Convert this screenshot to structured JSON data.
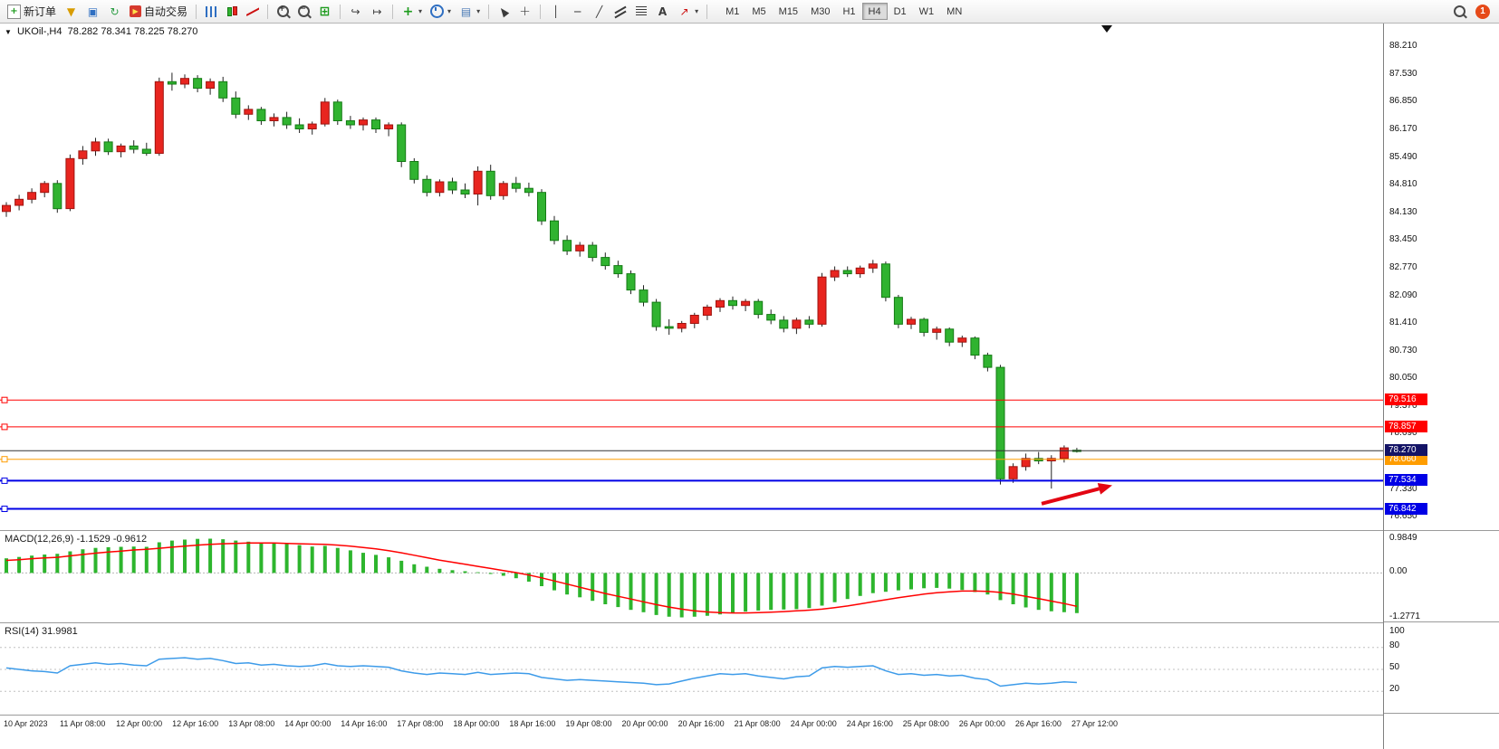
{
  "toolbar": {
    "new_order_label": "新订单",
    "autotrading_label": "自动交易",
    "periods": [
      "M1",
      "M5",
      "M15",
      "M30",
      "H1",
      "H4",
      "D1",
      "W1",
      "MN"
    ],
    "active_period": "H4",
    "notification_count": "1"
  },
  "icons": {
    "new_order_plus": "+",
    "funnel": "▼",
    "monitor": "▣",
    "refresh": "↻",
    "autotrading_play": "▶",
    "grid": "⊞",
    "auto_scroll": "↪",
    "chart_shift": "↦",
    "indicators_plus": "+",
    "templates": "▤",
    "crosshair": "+",
    "vertical_line": "│",
    "horizontal_line": "─",
    "trendline": "╱",
    "text_tool": "A",
    "arrows_tool": "↗",
    "caret": "▾",
    "collapse": "▼"
  },
  "chart_data": {
    "type": "candlestick",
    "title": "UKOil-,H4",
    "symbol": "UKOil-",
    "timeframe": "H4",
    "ohlc_text": "78.282 78.341 78.225 78.270",
    "ohlc_current": {
      "open": 78.282,
      "high": 78.341,
      "low": 78.225,
      "close": 78.27
    },
    "x_labels": [
      "10 Apr 2023",
      "11 Apr 08:00",
      "12 Apr 00:00",
      "12 Apr 16:00",
      "13 Apr 08:00",
      "14 Apr 00:00",
      "14 Apr 16:00",
      "17 Apr 08:00",
      "18 Apr 00:00",
      "18 Apr 16:00",
      "19 Apr 08:00",
      "20 Apr 00:00",
      "20 Apr 16:00",
      "21 Apr 08:00",
      "24 Apr 00:00",
      "24 Apr 16:00",
      "25 Apr 08:00",
      "26 Apr 00:00",
      "26 Apr 16:00",
      "27 Apr 12:00"
    ],
    "colors": {
      "up": "#e8251f",
      "up_border": "#9e1410",
      "down": "#30b330",
      "down_border": "#147a14",
      "wick": "#222222",
      "macd_hist": "#2db52d",
      "macd_signal": "#ff0000",
      "rsi_line": "#3d9be9"
    },
    "main": {
      "y_range": [
        76.32,
        88.77
      ],
      "y_ticks": [
        {
          "v": 88.21,
          "label": "88.210"
        },
        {
          "v": 87.53,
          "label": "87.530"
        },
        {
          "v": 86.85,
          "label": "86.850"
        },
        {
          "v": 86.17,
          "label": "86.170"
        },
        {
          "v": 85.49,
          "label": "85.490"
        },
        {
          "v": 84.81,
          "label": "84.810"
        },
        {
          "v": 84.13,
          "label": "84.130"
        },
        {
          "v": 83.45,
          "label": "83.450"
        },
        {
          "v": 82.77,
          "label": "82.770"
        },
        {
          "v": 82.09,
          "label": "82.090"
        },
        {
          "v": 81.41,
          "label": "81.410"
        },
        {
          "v": 80.73,
          "label": "80.730"
        },
        {
          "v": 80.05,
          "label": "80.050"
        },
        {
          "v": 79.37,
          "label": "79.370"
        },
        {
          "v": 78.69,
          "label": "78.690"
        },
        {
          "v": 77.33,
          "label": "77.330"
        },
        {
          "v": 76.65,
          "label": "76.650"
        }
      ],
      "hlines": [
        {
          "price": 79.516,
          "label": "79.516",
          "color": "#ff0000",
          "width": 1
        },
        {
          "price": 78.857,
          "label": "78.857",
          "color": "#ff0000",
          "width": 1
        },
        {
          "price": 78.06,
          "label": "78.060",
          "color": "#ff9d00",
          "width": 1
        },
        {
          "price": 77.534,
          "label": "77.534",
          "color": "#0000e6",
          "width": 2
        },
        {
          "price": 76.842,
          "label": "76.842",
          "color": "#0000e6",
          "width": 2
        }
      ],
      "current_price": {
        "label": "78.270",
        "price": 78.27,
        "badge_bg": "#141466",
        "line_color": "#333333"
      },
      "arrow": {
        "tail": [
          1150,
          76.97
        ],
        "head": [
          1228,
          77.42
        ],
        "color": "#e30613"
      },
      "shift_marker_x": 1222,
      "candles": [
        [
          84.15,
          84.38,
          84.02,
          84.3
        ],
        [
          84.3,
          84.56,
          84.18,
          84.45
        ],
        [
          84.45,
          84.72,
          84.35,
          84.62
        ],
        [
          84.62,
          84.9,
          84.5,
          84.84
        ],
        [
          84.84,
          84.92,
          84.12,
          84.22
        ],
        [
          84.22,
          85.55,
          84.16,
          85.45
        ],
        [
          85.45,
          85.76,
          85.3,
          85.64
        ],
        [
          85.64,
          85.96,
          85.52,
          85.86
        ],
        [
          85.86,
          85.94,
          85.54,
          85.62
        ],
        [
          85.62,
          85.82,
          85.48,
          85.76
        ],
        [
          85.76,
          85.9,
          85.58,
          85.68
        ],
        [
          85.68,
          85.84,
          85.52,
          85.58
        ],
        [
          85.58,
          87.44,
          85.52,
          87.34
        ],
        [
          87.34,
          87.56,
          87.12,
          87.28
        ],
        [
          87.28,
          87.52,
          87.18,
          87.42
        ],
        [
          87.42,
          87.5,
          87.08,
          87.18
        ],
        [
          87.18,
          87.42,
          87.02,
          87.34
        ],
        [
          87.34,
          87.46,
          86.84,
          86.94
        ],
        [
          86.94,
          87.1,
          86.44,
          86.54
        ],
        [
          86.54,
          86.76,
          86.4,
          86.66
        ],
        [
          86.66,
          86.72,
          86.28,
          86.38
        ],
        [
          86.38,
          86.56,
          86.24,
          86.46
        ],
        [
          86.46,
          86.6,
          86.18,
          86.28
        ],
        [
          86.28,
          86.44,
          86.08,
          86.18
        ],
        [
          86.18,
          86.36,
          86.04,
          86.3
        ],
        [
          86.3,
          86.94,
          86.24,
          86.84
        ],
        [
          86.84,
          86.9,
          86.28,
          86.38
        ],
        [
          86.38,
          86.5,
          86.18,
          86.28
        ],
        [
          86.28,
          86.46,
          86.14,
          86.4
        ],
        [
          86.4,
          86.46,
          86.08,
          86.18
        ],
        [
          86.18,
          86.34,
          86.0,
          86.28
        ],
        [
          86.28,
          86.34,
          85.24,
          85.38
        ],
        [
          85.38,
          85.46,
          84.84,
          84.94
        ],
        [
          84.94,
          85.04,
          84.52,
          84.62
        ],
        [
          84.62,
          84.94,
          84.52,
          84.88
        ],
        [
          84.88,
          84.98,
          84.58,
          84.68
        ],
        [
          84.68,
          84.84,
          84.48,
          84.58
        ],
        [
          84.58,
          85.26,
          84.3,
          85.14
        ],
        [
          85.14,
          85.3,
          84.44,
          84.54
        ],
        [
          84.54,
          84.9,
          84.44,
          84.84
        ],
        [
          84.84,
          85.0,
          84.62,
          84.72
        ],
        [
          84.72,
          84.86,
          84.52,
          84.62
        ],
        [
          84.62,
          84.7,
          83.82,
          83.92
        ],
        [
          83.92,
          84.04,
          83.34,
          83.44
        ],
        [
          83.44,
          83.56,
          83.08,
          83.18
        ],
        [
          83.18,
          83.4,
          83.04,
          83.32
        ],
        [
          83.32,
          83.4,
          82.92,
          83.02
        ],
        [
          83.02,
          83.14,
          82.72,
          82.82
        ],
        [
          82.82,
          82.94,
          82.52,
          82.62
        ],
        [
          82.62,
          82.7,
          82.12,
          82.22
        ],
        [
          82.22,
          82.34,
          81.82,
          81.92
        ],
        [
          81.92,
          82.0,
          81.22,
          81.32
        ],
        [
          81.32,
          81.5,
          81.12,
          81.28
        ],
        [
          81.28,
          81.46,
          81.18,
          81.4
        ],
        [
          81.4,
          81.66,
          81.28,
          81.6
        ],
        [
          81.6,
          81.86,
          81.48,
          81.8
        ],
        [
          81.8,
          82.02,
          81.68,
          81.96
        ],
        [
          81.96,
          82.06,
          81.74,
          81.84
        ],
        [
          81.84,
          82.0,
          81.7,
          81.94
        ],
        [
          81.94,
          82.0,
          81.52,
          81.62
        ],
        [
          81.62,
          81.74,
          81.38,
          81.48
        ],
        [
          81.48,
          81.58,
          81.18,
          81.28
        ],
        [
          81.28,
          81.54,
          81.14,
          81.48
        ],
        [
          81.48,
          81.58,
          81.28,
          81.38
        ],
        [
          81.38,
          82.64,
          81.32,
          82.54
        ],
        [
          82.54,
          82.8,
          82.44,
          82.7
        ],
        [
          82.7,
          82.8,
          82.54,
          82.62
        ],
        [
          82.62,
          82.82,
          82.52,
          82.76
        ],
        [
          82.76,
          82.96,
          82.64,
          82.86
        ],
        [
          82.86,
          82.92,
          81.94,
          82.04
        ],
        [
          82.04,
          82.1,
          81.28,
          81.38
        ],
        [
          81.38,
          81.56,
          81.26,
          81.5
        ],
        [
          81.5,
          81.54,
          81.08,
          81.18
        ],
        [
          81.18,
          81.32,
          81.0,
          81.26
        ],
        [
          81.26,
          81.3,
          80.84,
          80.94
        ],
        [
          80.94,
          81.1,
          80.82,
          81.04
        ],
        [
          81.04,
          81.08,
          80.52,
          80.62
        ],
        [
          80.62,
          80.68,
          80.22,
          80.32
        ],
        [
          80.32,
          80.38,
          77.44,
          77.58
        ],
        [
          77.58,
          77.96,
          77.48,
          77.88
        ],
        [
          77.88,
          78.2,
          77.78,
          78.08
        ],
        [
          78.08,
          78.24,
          77.94,
          78.02
        ],
        [
          78.02,
          78.16,
          77.34,
          78.08
        ],
        [
          78.08,
          78.4,
          77.98,
          78.34
        ],
        [
          78.282,
          78.341,
          78.225,
          78.27
        ]
      ]
    },
    "macd": {
      "label": "MACD(12,26,9)",
      "values_text": "-1.1529 -0.9612",
      "y_range": [
        -1.42,
        1.18
      ],
      "ticks": [
        {
          "v": 0.9849,
          "label": "0.9849"
        },
        {
          "v": 0,
          "label": "0.00"
        },
        {
          "v": -1.2771,
          "label": "-1.2771"
        }
      ],
      "hist": [
        0.42,
        0.46,
        0.5,
        0.53,
        0.55,
        0.62,
        0.68,
        0.72,
        0.74,
        0.75,
        0.76,
        0.75,
        0.88,
        0.93,
        0.96,
        0.98,
        0.985,
        0.97,
        0.93,
        0.9,
        0.88,
        0.86,
        0.84,
        0.8,
        0.76,
        0.78,
        0.72,
        0.65,
        0.58,
        0.52,
        0.45,
        0.35,
        0.25,
        0.18,
        0.12,
        0.08,
        0.05,
        0.02,
        -0.03,
        -0.08,
        -0.15,
        -0.25,
        -0.38,
        -0.5,
        -0.62,
        -0.7,
        -0.8,
        -0.9,
        -0.98,
        -1.06,
        -1.13,
        -1.21,
        -1.26,
        -1.277,
        -1.26,
        -1.23,
        -1.19,
        -1.15,
        -1.11,
        -1.08,
        -1.06,
        -1.05,
        -1.04,
        -1.01,
        -0.94,
        -0.84,
        -0.75,
        -0.66,
        -0.58,
        -0.54,
        -0.5,
        -0.47,
        -0.44,
        -0.43,
        -0.45,
        -0.49,
        -0.55,
        -0.62,
        -0.78,
        -0.9,
        -0.99,
        -1.06,
        -1.1,
        -1.13,
        -1.153
      ],
      "signal": [
        0.36,
        0.38,
        0.41,
        0.43,
        0.45,
        0.49,
        0.53,
        0.57,
        0.6,
        0.63,
        0.66,
        0.68,
        0.71,
        0.74,
        0.77,
        0.8,
        0.82,
        0.84,
        0.85,
        0.86,
        0.86,
        0.86,
        0.85,
        0.84,
        0.83,
        0.82,
        0.8,
        0.77,
        0.73,
        0.69,
        0.64,
        0.58,
        0.51,
        0.44,
        0.37,
        0.31,
        0.25,
        0.19,
        0.13,
        0.07,
        0.01,
        -0.06,
        -0.14,
        -0.23,
        -0.32,
        -0.41,
        -0.5,
        -0.59,
        -0.67,
        -0.75,
        -0.83,
        -0.91,
        -0.98,
        -1.04,
        -1.09,
        -1.12,
        -1.14,
        -1.15,
        -1.15,
        -1.14,
        -1.13,
        -1.11,
        -1.09,
        -1.07,
        -1.04,
        -1.0,
        -0.95,
        -0.89,
        -0.83,
        -0.77,
        -0.71,
        -0.66,
        -0.61,
        -0.57,
        -0.54,
        -0.52,
        -0.52,
        -0.53,
        -0.56,
        -0.61,
        -0.67,
        -0.74,
        -0.81,
        -0.88,
        -0.961
      ]
    },
    "rsi": {
      "label": "RSI(14)",
      "value_text": "31.9981",
      "y_range": [
        -12,
        112
      ],
      "levels": [
        80,
        50,
        20
      ],
      "ticks": [
        {
          "v": 100,
          "label": "100"
        },
        {
          "v": 80,
          "label": "80"
        },
        {
          "v": 50,
          "label": "50"
        },
        {
          "v": 20,
          "label": "20"
        }
      ],
      "values": [
        52,
        50,
        48,
        47,
        45,
        55,
        57,
        59,
        57,
        58,
        56,
        55,
        64,
        65,
        66,
        64,
        65,
        62,
        58,
        59,
        56,
        57,
        55,
        54,
        55,
        58,
        55,
        54,
        55,
        54,
        53,
        48,
        45,
        43,
        45,
        44,
        43,
        46,
        43,
        44,
        45,
        44,
        39,
        37,
        35,
        36,
        35,
        34,
        33,
        32,
        31,
        29,
        30,
        34,
        38,
        41,
        44,
        43,
        44,
        41,
        39,
        37,
        40,
        41,
        52,
        54,
        53,
        54,
        55,
        48,
        43,
        44,
        42,
        43,
        41,
        42,
        38,
        36,
        27,
        29,
        31,
        30,
        31,
        33,
        32
      ]
    }
  }
}
